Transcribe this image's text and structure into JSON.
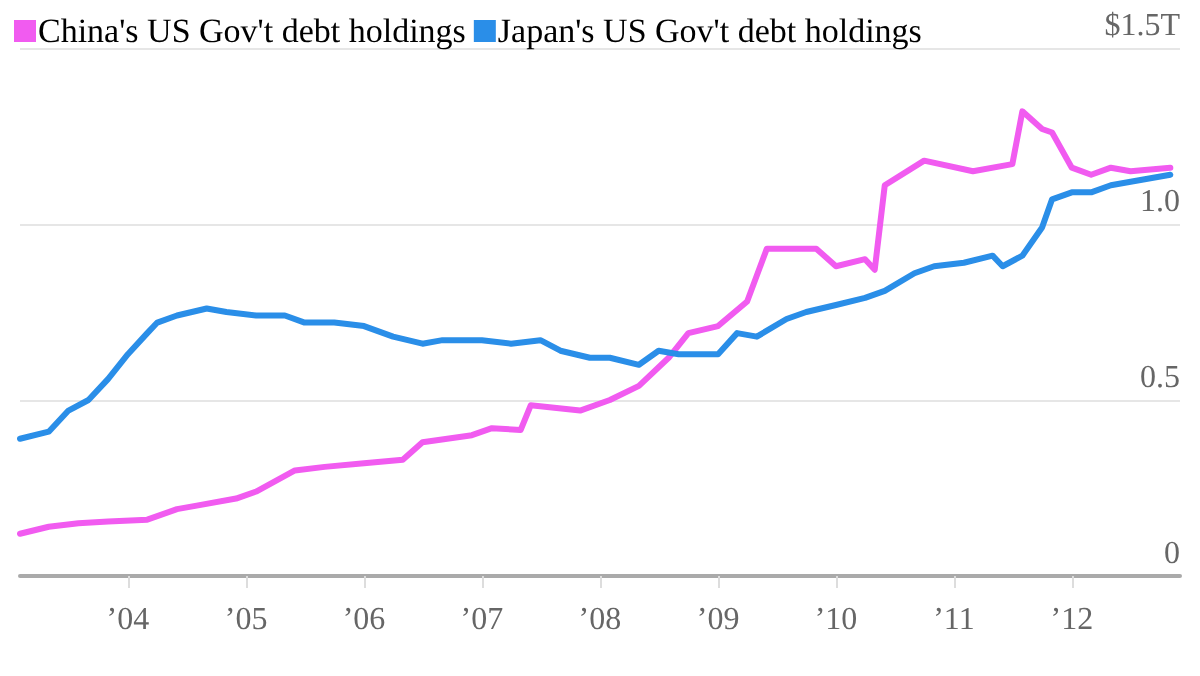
{
  "chart_data": {
    "type": "line",
    "legend": "top left",
    "grid": "y",
    "marker": "none",
    "line_style": "solid",
    "ylim": [
      0,
      1.5
    ],
    "yticks": [
      0,
      0.5,
      {
        "value": 1,
        "label": "1.0"
      },
      {
        "value": 1.5,
        "label": "$1.5T"
      }
    ],
    "xlim": [
      "2003-02",
      "2012-12"
    ],
    "xticks": [
      {
        "value": "2004-01",
        "label": "’04"
      },
      {
        "value": "2005-01",
        "label": "’05"
      },
      {
        "value": "2006-01",
        "label": "’06"
      },
      {
        "value": "2007-01",
        "label": "’07"
      },
      {
        "value": "2008-01",
        "label": "’08"
      },
      {
        "value": "2009-01",
        "label": "’09"
      },
      {
        "value": "2010-01",
        "label": "’10"
      },
      {
        "value": "2011-01",
        "label": "’11"
      },
      {
        "value": "2012-01",
        "label": "’12"
      }
    ],
    "series": [
      {
        "name": "China's US Gov't debt holdings",
        "color": "#f15bf0",
        "x": [
          "2003-02",
          "2003-05",
          "2003-08",
          "2003-11",
          "2004-03",
          "2004-06",
          "2004-08",
          "2004-12",
          "2005-02",
          "2005-06",
          "2005-09",
          "2006-01",
          "2006-05",
          "2006-07",
          "2006-12",
          "2007-02",
          "2007-05",
          "2007-06",
          "2007-11",
          "2008-02",
          "2008-05",
          "2008-08",
          "2008-10",
          "2009-01",
          "2009-04",
          "2009-06",
          "2009-11",
          "2010-01",
          "2010-04",
          "2010-05",
          "2010-06",
          "2010-10",
          "2011-03",
          "2011-07",
          "2011-08",
          "2011-10",
          "2011-11",
          "2012-01",
          "2012-03",
          "2012-05",
          "2012-07",
          "2012-11"
        ],
        "values": [
          0.12,
          0.14,
          0.15,
          0.155,
          0.16,
          0.19,
          0.2,
          0.22,
          0.24,
          0.3,
          0.31,
          0.32,
          0.33,
          0.38,
          0.4,
          0.42,
          0.415,
          0.485,
          0.47,
          0.5,
          0.54,
          0.62,
          0.69,
          0.71,
          0.78,
          0.93,
          0.93,
          0.88,
          0.9,
          0.87,
          1.11,
          1.18,
          1.15,
          1.17,
          1.32,
          1.27,
          1.26,
          1.16,
          1.14,
          1.16,
          1.15,
          1.16
        ]
      },
      {
        "name": "Japan's US Gov't debt holdings",
        "color": "#2a8ee8",
        "x": [
          "2003-02",
          "2003-05",
          "2003-07",
          "2003-09",
          "2003-11",
          "2004-01",
          "2004-03",
          "2004-04",
          "2004-06",
          "2004-09",
          "2004-11",
          "2005-02",
          "2005-05",
          "2005-07",
          "2005-10",
          "2006-01",
          "2006-04",
          "2006-07",
          "2006-09",
          "2007-01",
          "2007-04",
          "2007-07",
          "2007-09",
          "2007-12",
          "2008-02",
          "2008-05",
          "2008-07",
          "2008-09",
          "2009-01",
          "2009-03",
          "2009-05",
          "2009-08",
          "2009-10",
          "2010-01",
          "2010-04",
          "2010-06",
          "2010-09",
          "2010-11",
          "2011-02",
          "2011-05",
          "2011-06",
          "2011-08",
          "2011-10",
          "2011-11",
          "2012-01",
          "2012-03",
          "2012-05",
          "2012-07",
          "2012-11"
        ],
        "values": [
          0.39,
          0.41,
          0.47,
          0.5,
          0.56,
          0.63,
          0.69,
          0.72,
          0.74,
          0.76,
          0.75,
          0.74,
          0.74,
          0.72,
          0.72,
          0.71,
          0.68,
          0.66,
          0.67,
          0.67,
          0.66,
          0.67,
          0.64,
          0.62,
          0.62,
          0.6,
          0.64,
          0.63,
          0.63,
          0.69,
          0.68,
          0.73,
          0.75,
          0.77,
          0.79,
          0.81,
          0.86,
          0.88,
          0.89,
          0.91,
          0.88,
          0.91,
          0.99,
          1.07,
          1.09,
          1.09,
          1.11,
          1.12,
          1.14
        ]
      }
    ]
  }
}
